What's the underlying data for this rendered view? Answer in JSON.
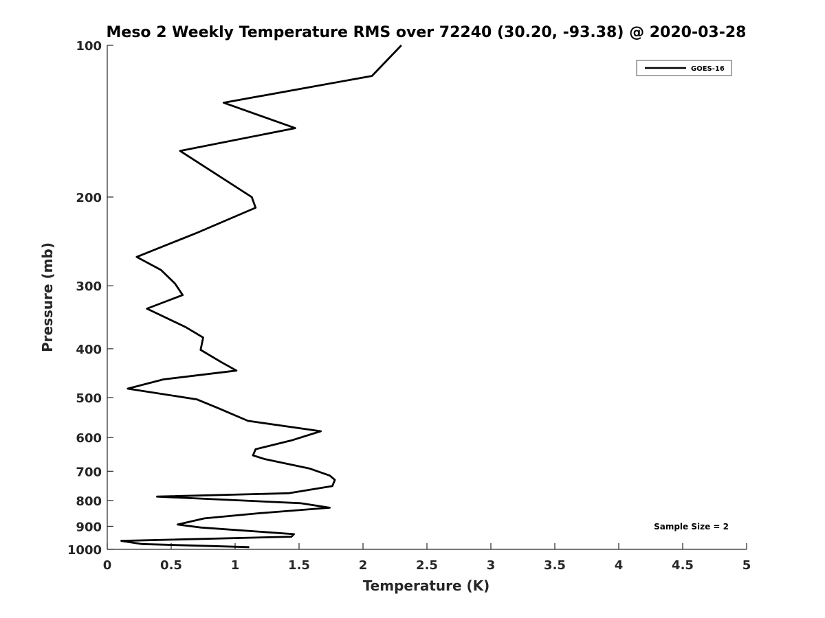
{
  "chart_data": {
    "type": "line",
    "title": "Meso 2 Weekly Temperature RMS over 72240 (30.20, -93.38) @ 2020-03-28",
    "xlabel": "Temperature (K)",
    "ylabel": "Pressure (mb)",
    "xlim": [
      0,
      5
    ],
    "ylim": [
      100,
      1000
    ],
    "y_scale": "log",
    "y_direction": "reversed",
    "grid": false,
    "legend_position": "top-right",
    "x_ticks": [
      "0",
      "0.5",
      "1",
      "1.5",
      "2",
      "2.5",
      "3",
      "3.5",
      "4",
      "4.5",
      "5"
    ],
    "y_ticks": [
      "100",
      "200",
      "300",
      "400",
      "500",
      "600",
      "700",
      "800",
      "900",
      "1000"
    ],
    "series": [
      {
        "name": "GOES-16",
        "color": "#000000",
        "x": [
          2.3,
          2.07,
          0.91,
          1.47,
          0.57,
          1.13,
          1.16,
          0.71,
          0.23,
          0.42,
          0.53,
          0.59,
          0.31,
          0.61,
          0.75,
          0.73,
          0.89,
          1.01,
          0.44,
          0.16,
          0.7,
          0.87,
          1.1,
          1.67,
          1.44,
          1.16,
          1.14,
          1.23,
          1.58,
          1.74,
          1.78,
          1.76,
          1.42,
          0.39,
          1.51,
          1.74,
          1.19,
          0.76,
          0.55,
          0.73,
          1.46,
          1.44,
          0.11,
          0.27,
          1.11
        ],
        "y": [
          100,
          115,
          130,
          146,
          162,
          200,
          210,
          235,
          263,
          279,
          297,
          313,
          333,
          362,
          380,
          402,
          425,
          442,
          460,
          480,
          504,
          525,
          556,
          583,
          608,
          633,
          651,
          662,
          691,
          714,
          728,
          749,
          774,
          786,
          810,
          827,
          848,
          868,
          893,
          905,
          933,
          944,
          962,
          976,
          990
        ]
      }
    ],
    "annotations": [
      "Sample Size = 2"
    ]
  }
}
